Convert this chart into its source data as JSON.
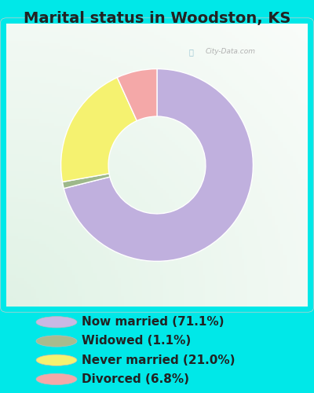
{
  "title": "Marital status in Woodston, KS",
  "slices": [
    71.1,
    1.1,
    21.0,
    6.8
  ],
  "labels": [
    "Now married (71.1%)",
    "Widowed (1.1%)",
    "Never married (21.0%)",
    "Divorced (6.8%)"
  ],
  "colors": [
    "#c0b0de",
    "#9db88a",
    "#f5f270",
    "#f4a8a8"
  ],
  "legend_colors": [
    "#c8b8e4",
    "#a8bb8e",
    "#f5f270",
    "#f4a8a8"
  ],
  "bg_color": "#00e8e8",
  "chart_bg_top": "#e8f4ee",
  "chart_bg_bottom": "#f0f8f0",
  "watermark": "City-Data.com",
  "start_angle": 90,
  "donut_width": 0.42,
  "title_fontsize": 14,
  "legend_fontsize": 11
}
